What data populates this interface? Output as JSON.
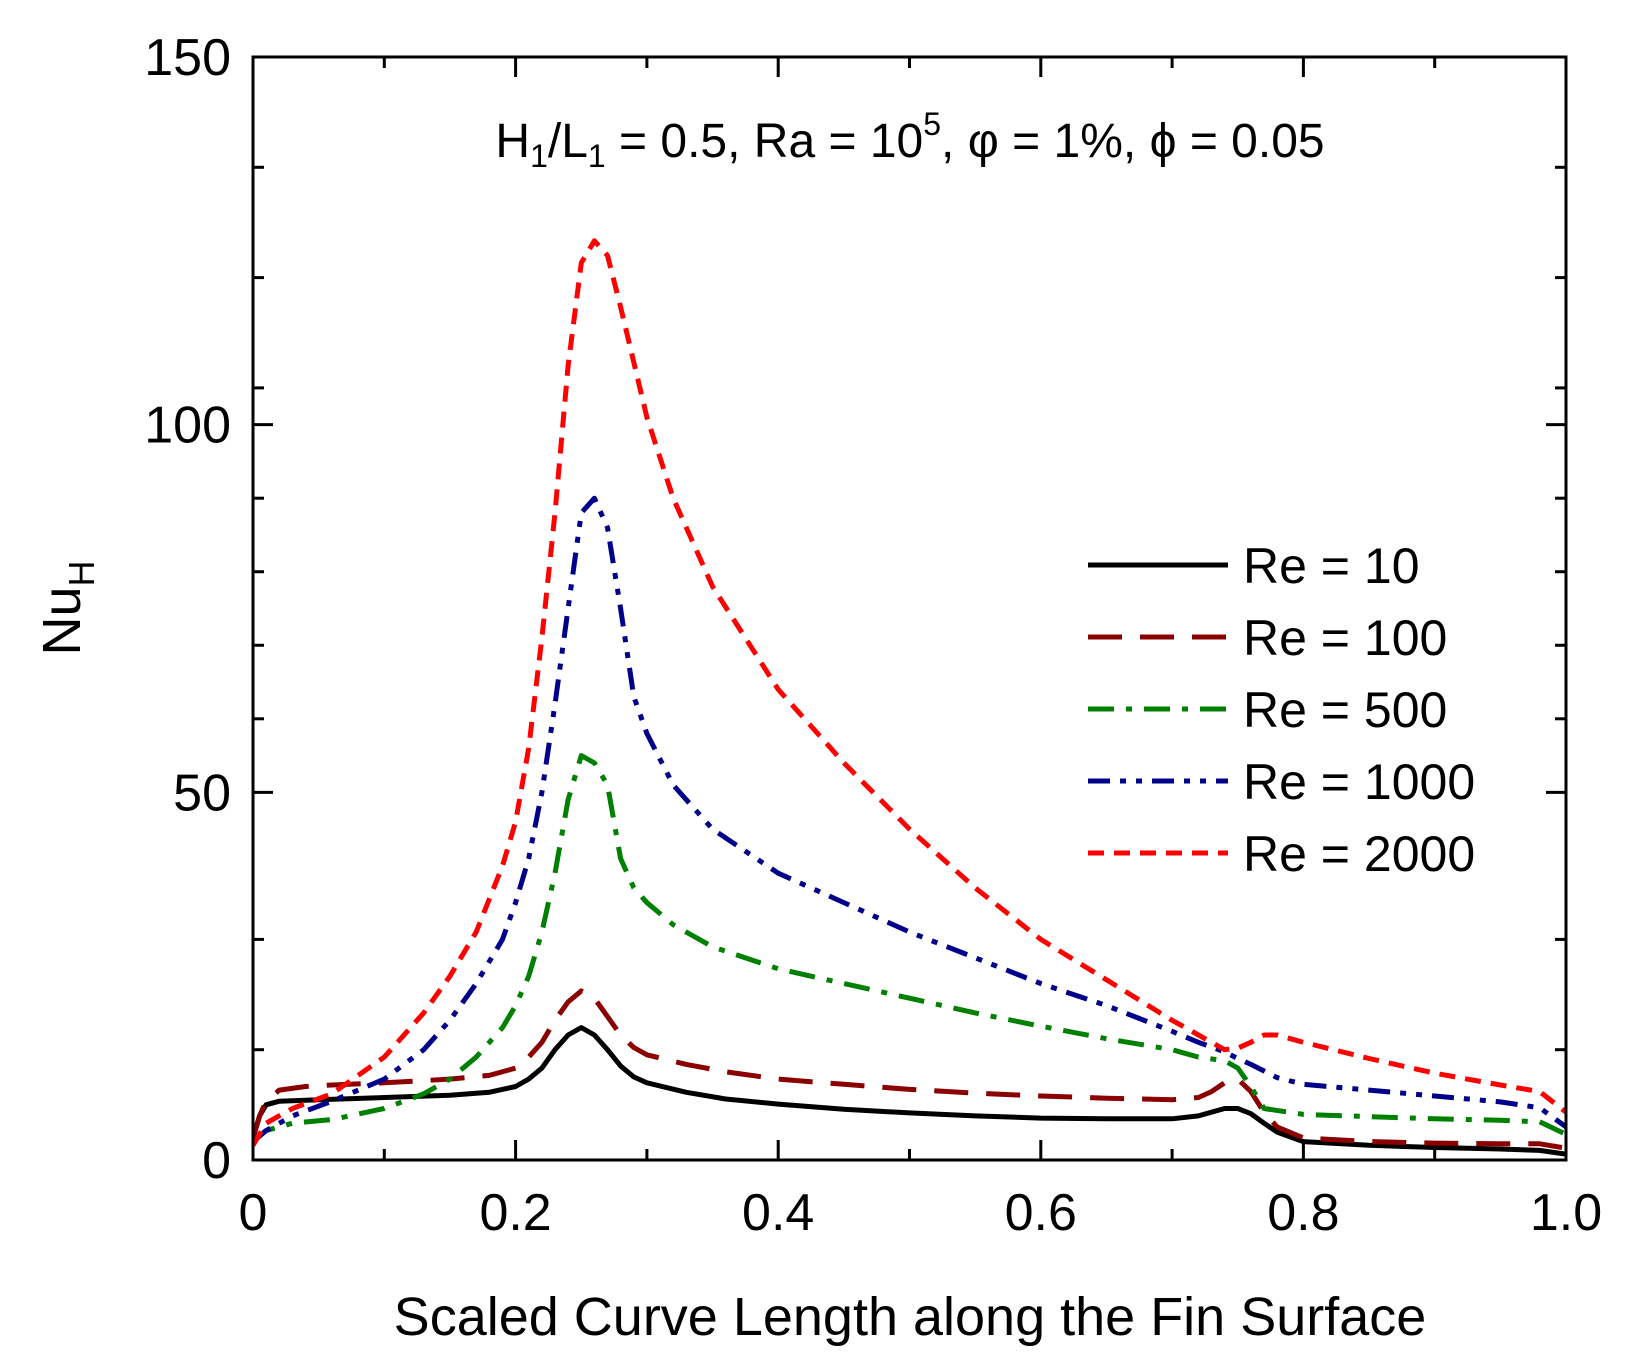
{
  "chart_data": {
    "type": "line",
    "title": "",
    "annotation": {
      "h": "H",
      "h_sub": "1",
      "slash": "/L",
      "l_sub": "1",
      "part1": " = 0.5,  Ra = 10",
      "ra_exp": "5",
      "part2": ", φ = 1%, ϕ = 0.05"
    },
    "xlabel": "Scaled Curve Length along the Fin Surface",
    "ylabel": "Nu",
    "ylabel_sub": "H",
    "xlim": [
      0,
      1.0
    ],
    "ylim": [
      0,
      150
    ],
    "x_ticks": [
      0,
      0.2,
      0.4,
      0.6,
      0.8,
      1.0
    ],
    "x_tick_labels": [
      "0",
      "0.2",
      "0.4",
      "0.6",
      "0.8",
      "1.0"
    ],
    "x_minor_ticks": [
      0.1,
      0.3,
      0.5,
      0.7,
      0.9
    ],
    "y_ticks": [
      0,
      50,
      100,
      150
    ],
    "y_tick_labels": [
      "0",
      "50",
      "100",
      "150"
    ],
    "y_minor_ticks": [
      15,
      30,
      60,
      70,
      80,
      90,
      105,
      120,
      135
    ],
    "legend_position": "center-right",
    "series": [
      {
        "name": "Re = 10",
        "color": "#000000",
        "dash": "solid",
        "x": [
          0,
          0.005,
          0.01,
          0.02,
          0.05,
          0.1,
          0.15,
          0.18,
          0.2,
          0.21,
          0.22,
          0.23,
          0.24,
          0.25,
          0.26,
          0.27,
          0.28,
          0.29,
          0.3,
          0.33,
          0.36,
          0.4,
          0.45,
          0.5,
          0.55,
          0.6,
          0.65,
          0.7,
          0.72,
          0.73,
          0.74,
          0.75,
          0.76,
          0.77,
          0.78,
          0.8,
          0.85,
          0.9,
          0.95,
          0.98,
          1.0
        ],
        "y": [
          3,
          6,
          7.5,
          8,
          8.2,
          8.5,
          8.8,
          9.2,
          10,
          11,
          12.5,
          15,
          17,
          18,
          17,
          15,
          12.8,
          11.3,
          10.5,
          9.2,
          8.3,
          7.6,
          6.9,
          6.4,
          6.0,
          5.7,
          5.6,
          5.6,
          6.0,
          6.5,
          7.0,
          7.0,
          6.3,
          5.0,
          3.8,
          2.5,
          2.0,
          1.7,
          1.5,
          1.3,
          0.8
        ]
      },
      {
        "name": "Re = 100",
        "color": "#8b0000",
        "dash": "long-dash",
        "x": [
          0,
          0.005,
          0.01,
          0.02,
          0.04,
          0.06,
          0.1,
          0.15,
          0.18,
          0.2,
          0.21,
          0.22,
          0.23,
          0.24,
          0.25,
          0.26,
          0.27,
          0.28,
          0.29,
          0.3,
          0.33,
          0.36,
          0.4,
          0.45,
          0.5,
          0.55,
          0.6,
          0.65,
          0.7,
          0.72,
          0.73,
          0.74,
          0.75,
          0.76,
          0.77,
          0.78,
          0.8,
          0.85,
          0.9,
          0.95,
          0.98,
          1.0
        ],
        "y": [
          3,
          6,
          8,
          9.5,
          10,
          10.2,
          10.5,
          11,
          11.5,
          12.5,
          14,
          16,
          19,
          21.5,
          23,
          22,
          19.5,
          17,
          15.3,
          14.3,
          13.0,
          12.0,
          11.0,
          10.3,
          9.6,
          9.1,
          8.7,
          8.4,
          8.2,
          8.5,
          9.3,
          10.5,
          11.0,
          9.3,
          6.5,
          4.5,
          3.0,
          2.5,
          2.3,
          2.2,
          2.2,
          1.6
        ]
      },
      {
        "name": "Re = 500",
        "color": "#008000",
        "dash": "dash-dot",
        "x": [
          0,
          0.01,
          0.03,
          0.06,
          0.1,
          0.13,
          0.15,
          0.17,
          0.19,
          0.2,
          0.21,
          0.22,
          0.23,
          0.24,
          0.25,
          0.26,
          0.27,
          0.28,
          0.29,
          0.3,
          0.32,
          0.35,
          0.4,
          0.45,
          0.5,
          0.55,
          0.6,
          0.65,
          0.7,
          0.72,
          0.74,
          0.75,
          0.76,
          0.77,
          0.8,
          0.85,
          0.9,
          0.95,
          0.98,
          1.0
        ],
        "y": [
          2.5,
          4,
          5,
          5.5,
          7,
          9,
          11,
          14,
          18,
          21,
          25,
          31,
          39,
          49,
          55,
          54,
          51,
          41,
          37,
          35,
          32,
          29,
          26,
          24,
          22,
          20,
          18.2,
          16.5,
          15,
          14,
          13.5,
          12.5,
          10.0,
          7.0,
          6.2,
          5.9,
          5.6,
          5.4,
          5.2,
          3.5
        ]
      },
      {
        "name": "Re = 1000",
        "color": "#00008b",
        "dash": "dash-dot-dot",
        "x": [
          0,
          0.01,
          0.03,
          0.06,
          0.1,
          0.13,
          0.15,
          0.17,
          0.19,
          0.2,
          0.21,
          0.22,
          0.23,
          0.24,
          0.25,
          0.26,
          0.27,
          0.28,
          0.29,
          0.3,
          0.32,
          0.35,
          0.4,
          0.45,
          0.5,
          0.55,
          0.6,
          0.65,
          0.7,
          0.72,
          0.74,
          0.75,
          0.76,
          0.78,
          0.8,
          0.85,
          0.9,
          0.95,
          0.98,
          1.0
        ],
        "y": [
          2.5,
          4,
          6,
          8,
          11,
          15,
          19,
          24,
          30,
          35,
          41,
          50,
          62,
          75,
          88,
          90,
          86,
          75,
          63,
          58,
          51,
          45,
          39,
          35,
          31,
          27.5,
          24,
          21,
          17.5,
          16,
          14.7,
          13.8,
          13.0,
          11.2,
          10.3,
          9.5,
          8.7,
          7.9,
          7.1,
          4.5
        ]
      },
      {
        "name": "Re = 2000",
        "color": "#ff0000",
        "dash": "short-dash",
        "x": [
          0,
          0.01,
          0.03,
          0.06,
          0.1,
          0.13,
          0.15,
          0.17,
          0.19,
          0.2,
          0.21,
          0.22,
          0.23,
          0.24,
          0.25,
          0.26,
          0.27,
          0.28,
          0.3,
          0.32,
          0.35,
          0.4,
          0.45,
          0.5,
          0.55,
          0.6,
          0.65,
          0.7,
          0.73,
          0.74,
          0.75,
          0.76,
          0.77,
          0.78,
          0.8,
          0.85,
          0.9,
          0.95,
          0.98,
          1.0
        ],
        "y": [
          2,
          5,
          7,
          9,
          14,
          20,
          25,
          31,
          40,
          46,
          56,
          71,
          88,
          108,
          122,
          125,
          123,
          116,
          101,
          90,
          78,
          64,
          54,
          45,
          37,
          30,
          24.5,
          19,
          16,
          15,
          15.2,
          16,
          17,
          17,
          16,
          13.8,
          11.8,
          10.2,
          9.3,
          6.5
        ]
      }
    ]
  }
}
